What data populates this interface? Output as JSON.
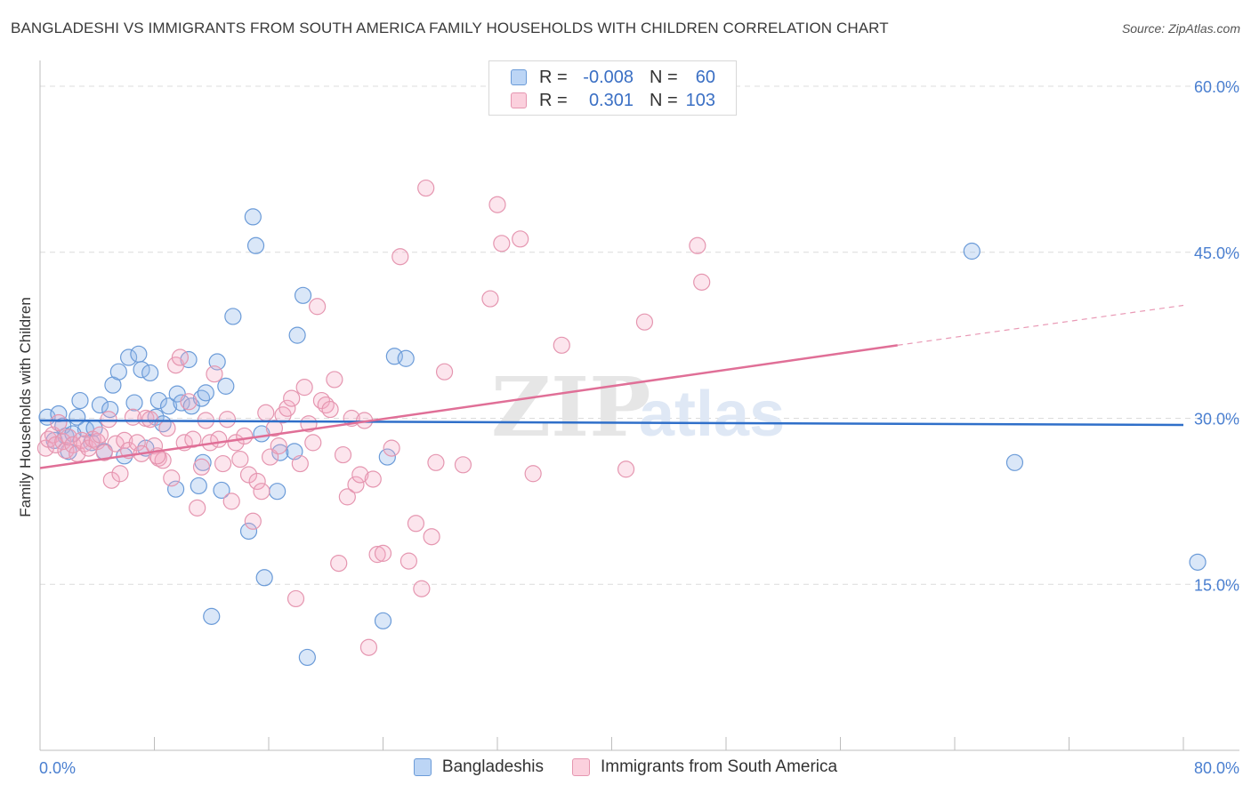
{
  "header": {
    "title": "BANGLADESHI VS IMMIGRANTS FROM SOUTH AMERICA FAMILY HOUSEHOLDS WITH CHILDREN CORRELATION CHART",
    "source": "Source: ZipAtlas.com"
  },
  "watermark": {
    "zip": "ZIP",
    "atlas": "atlas"
  },
  "legend": {
    "rows": [
      {
        "r_label": "R =",
        "r_value": "-0.008",
        "n_label": "N =",
        "n_value": "60",
        "color": "#a9c8f0",
        "border": "#5b8fd6"
      },
      {
        "r_label": "R =",
        "r_value": "0.301",
        "n_label": "N =",
        "n_value": "103",
        "color": "#f7bfd0",
        "border": "#e07fa0"
      }
    ]
  },
  "bottom_legend": {
    "items": [
      {
        "label": "Bangladeshis",
        "color": "#bcd5f5",
        "border": "#6b9bd8"
      },
      {
        "label": "Immigrants from South America",
        "color": "#fbd0dd",
        "border": "#e596b0"
      }
    ]
  },
  "colors": {
    "blue_point": "#6b9bd8",
    "blue_fill": "rgba(150,185,235,0.35)",
    "blue_line": "#2f6fc9",
    "pink_point": "#e596b0",
    "pink_fill": "rgba(245,170,195,0.30)",
    "pink_line": "#e06f97",
    "grid": "#dcdcdc",
    "axis_text": "#4a7fd0"
  },
  "chart_data": {
    "type": "scatter",
    "title": "BANGLADESHI VS IMMIGRANTS FROM SOUTH AMERICA FAMILY HOUSEHOLDS WITH CHILDREN CORRELATION CHART",
    "xlabel": "",
    "ylabel": "Family Households with Children",
    "xlim": [
      0,
      80
    ],
    "ylim": [
      0,
      60
    ],
    "x_tick_labels": [
      "0.0%",
      "80.0%"
    ],
    "y_ticks": [
      15,
      30,
      45,
      60
    ],
    "y_tick_labels": [
      "15.0%",
      "30.0%",
      "45.0%",
      "60.0%"
    ],
    "grid": true,
    "legend_position": "top-center",
    "series": [
      {
        "name": "Bangladeshis",
        "R": -0.008,
        "N": 60,
        "trend": {
          "x0": 0,
          "y0": 29.8,
          "x1": 80,
          "y1": 29.4
        },
        "points": [
          [
            0.5,
            30.1
          ],
          [
            1.0,
            28.0
          ],
          [
            1.3,
            30.4
          ],
          [
            1.8,
            28.4
          ],
          [
            2.0,
            27.0
          ],
          [
            2.6,
            30.1
          ],
          [
            2.8,
            31.6
          ],
          [
            3.2,
            29.0
          ],
          [
            3.6,
            27.8
          ],
          [
            3.8,
            29.1
          ],
          [
            4.2,
            31.2
          ],
          [
            4.5,
            27.0
          ],
          [
            4.9,
            30.8
          ],
          [
            5.1,
            33.0
          ],
          [
            5.5,
            34.2
          ],
          [
            5.9,
            26.6
          ],
          [
            6.2,
            35.5
          ],
          [
            6.6,
            31.4
          ],
          [
            6.9,
            35.8
          ],
          [
            7.1,
            34.4
          ],
          [
            7.4,
            27.3
          ],
          [
            7.7,
            34.1
          ],
          [
            8.1,
            30.1
          ],
          [
            8.3,
            31.6
          ],
          [
            8.6,
            29.5
          ],
          [
            9.0,
            31.1
          ],
          [
            9.6,
            32.2
          ],
          [
            9.9,
            31.4
          ],
          [
            10.4,
            35.3
          ],
          [
            10.6,
            31.1
          ],
          [
            11.3,
            31.8
          ],
          [
            11.6,
            32.3
          ],
          [
            12.4,
            35.1
          ],
          [
            12.7,
            23.5
          ],
          [
            13.0,
            32.9
          ],
          [
            13.5,
            39.2
          ],
          [
            14.6,
            19.8
          ],
          [
            14.9,
            48.2
          ],
          [
            15.1,
            45.6
          ],
          [
            15.5,
            28.6
          ],
          [
            15.7,
            15.6
          ],
          [
            16.6,
            23.4
          ],
          [
            16.8,
            26.9
          ],
          [
            18.0,
            37.5
          ],
          [
            18.4,
            41.1
          ],
          [
            18.7,
            8.4
          ],
          [
            9.5,
            23.6
          ],
          [
            11.1,
            23.9
          ],
          [
            11.4,
            26.0
          ],
          [
            12.0,
            12.1
          ],
          [
            17.8,
            27.0
          ],
          [
            24.8,
            35.6
          ],
          [
            25.6,
            35.4
          ],
          [
            24.3,
            26.5
          ],
          [
            24.0,
            11.7
          ],
          [
            65.2,
            45.1
          ],
          [
            68.2,
            26.0
          ],
          [
            81.0,
            17.0
          ],
          [
            1.6,
            29.3
          ],
          [
            2.3,
            28.6
          ]
        ]
      },
      {
        "name": "Immigrants from South America",
        "R": 0.301,
        "N": 103,
        "trend": {
          "x0": 0,
          "y0": 25.5,
          "x1": 60,
          "y1": 36.6
        },
        "trend_dashed": {
          "x0": 60,
          "y0": 36.6,
          "x1": 80,
          "y1": 40.2
        },
        "points": [
          [
            0.4,
            27.3
          ],
          [
            0.6,
            28.1
          ],
          [
            0.9,
            28.5
          ],
          [
            1.1,
            27.6
          ],
          [
            1.3,
            29.6
          ],
          [
            1.6,
            27.9
          ],
          [
            1.8,
            27.1
          ],
          [
            2.0,
            28.3
          ],
          [
            2.3,
            27.6
          ],
          [
            2.6,
            26.8
          ],
          [
            2.9,
            28.0
          ],
          [
            3.1,
            27.7
          ],
          [
            3.4,
            27.3
          ],
          [
            3.7,
            28.1
          ],
          [
            4.0,
            27.9
          ],
          [
            4.2,
            28.5
          ],
          [
            4.5,
            26.9
          ],
          [
            4.8,
            29.9
          ],
          [
            5.0,
            24.4
          ],
          [
            5.3,
            27.7
          ],
          [
            5.6,
            25.0
          ],
          [
            5.9,
            28.0
          ],
          [
            6.2,
            27.1
          ],
          [
            6.5,
            30.1
          ],
          [
            6.8,
            27.8
          ],
          [
            7.1,
            26.8
          ],
          [
            7.4,
            30.0
          ],
          [
            7.7,
            29.9
          ],
          [
            8.0,
            27.5
          ],
          [
            8.3,
            26.4
          ],
          [
            8.6,
            26.2
          ],
          [
            8.9,
            29.1
          ],
          [
            9.2,
            24.6
          ],
          [
            9.5,
            34.8
          ],
          [
            9.8,
            35.5
          ],
          [
            10.1,
            27.8
          ],
          [
            10.4,
            31.5
          ],
          [
            10.7,
            28.1
          ],
          [
            11.0,
            21.9
          ],
          [
            11.3,
            25.6
          ],
          [
            11.6,
            29.8
          ],
          [
            11.9,
            27.8
          ],
          [
            12.2,
            34.0
          ],
          [
            12.5,
            28.1
          ],
          [
            12.8,
            25.9
          ],
          [
            13.1,
            29.9
          ],
          [
            13.4,
            22.5
          ],
          [
            13.7,
            27.8
          ],
          [
            14.0,
            26.3
          ],
          [
            14.3,
            28.4
          ],
          [
            14.6,
            24.9
          ],
          [
            14.9,
            20.7
          ],
          [
            15.2,
            24.3
          ],
          [
            15.5,
            23.4
          ],
          [
            15.8,
            30.5
          ],
          [
            16.1,
            26.5
          ],
          [
            16.4,
            29.1
          ],
          [
            16.7,
            27.5
          ],
          [
            17.0,
            30.3
          ],
          [
            17.3,
            30.9
          ],
          [
            17.6,
            31.8
          ],
          [
            17.9,
            13.7
          ],
          [
            18.2,
            25.9
          ],
          [
            18.5,
            32.8
          ],
          [
            18.8,
            29.5
          ],
          [
            19.1,
            27.8
          ],
          [
            19.4,
            40.1
          ],
          [
            19.7,
            31.6
          ],
          [
            20.0,
            31.2
          ],
          [
            20.3,
            30.8
          ],
          [
            20.6,
            33.5
          ],
          [
            20.9,
            16.9
          ],
          [
            21.2,
            26.7
          ],
          [
            21.5,
            22.9
          ],
          [
            21.8,
            30.0
          ],
          [
            22.1,
            24.0
          ],
          [
            22.4,
            24.9
          ],
          [
            22.7,
            29.8
          ],
          [
            23.0,
            9.3
          ],
          [
            23.3,
            24.5
          ],
          [
            23.6,
            17.7
          ],
          [
            24.0,
            17.8
          ],
          [
            24.6,
            27.3
          ],
          [
            25.2,
            44.6
          ],
          [
            25.8,
            17.1
          ],
          [
            26.3,
            20.5
          ],
          [
            26.7,
            14.6
          ],
          [
            27.0,
            50.8
          ],
          [
            27.4,
            19.3
          ],
          [
            27.7,
            26.0
          ],
          [
            28.3,
            34.2
          ],
          [
            29.6,
            25.8
          ],
          [
            31.5,
            40.8
          ],
          [
            32.0,
            49.3
          ],
          [
            32.3,
            45.8
          ],
          [
            33.6,
            46.2
          ],
          [
            34.5,
            25.0
          ],
          [
            36.5,
            36.6
          ],
          [
            41.0,
            25.4
          ],
          [
            42.3,
            38.7
          ],
          [
            46.0,
            45.6
          ],
          [
            46.3,
            42.3
          ],
          [
            8.2,
            26.6
          ]
        ]
      }
    ]
  }
}
